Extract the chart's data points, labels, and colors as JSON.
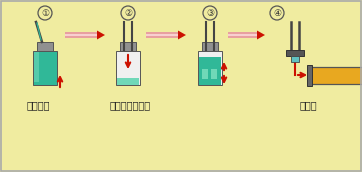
{
  "bg_color": "#f0eca0",
  "border_color": "#aaaaaa",
  "labels": [
    "標準原液",
    "混合用バイアル",
    "カラム"
  ],
  "step_numbers": [
    "①",
    "②",
    "③",
    "④"
  ],
  "red": "#cc1100",
  "dark": "#333333",
  "gray_cap": "#888888",
  "gray_dark": "#555555",
  "vial_green": "#30b898",
  "vial_green_light": "#70d8b8",
  "vial_bg": "#e8e8e8",
  "column_fill": "#e8a820",
  "column_cap": "#666666",
  "cyan_tip": "#60c0c0",
  "tube_pink": "#e09090",
  "tube_light": "#f0d8d8",
  "black_arrow": "#222222",
  "label_color": "#222222",
  "label_fontsize": 7.0,
  "circle_fontsize": 6.5
}
